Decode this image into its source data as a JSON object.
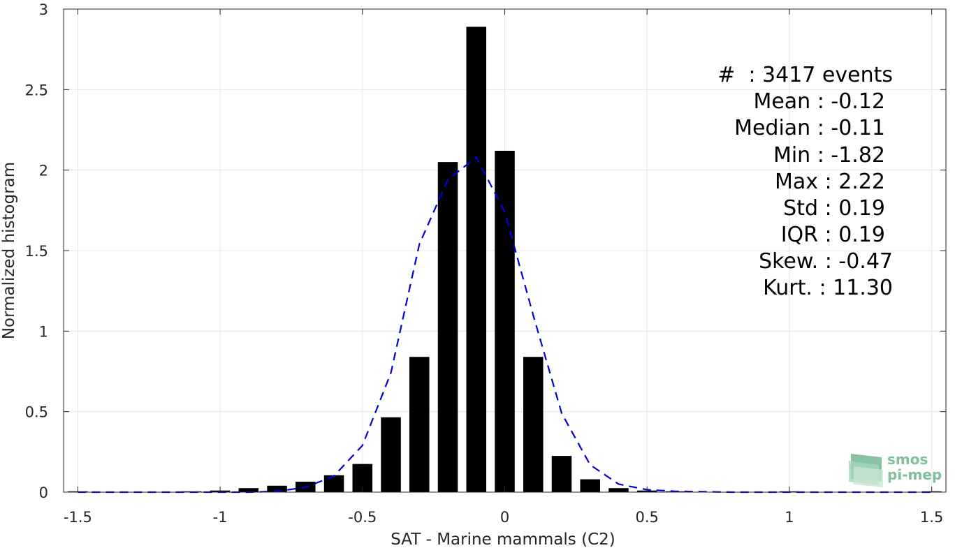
{
  "chart_data": {
    "type": "bar",
    "xlabel": "SAT - Marine mammals (C2)",
    "ylabel": "Normalized histogram",
    "xlim": [
      -1.55,
      1.55
    ],
    "ylim": [
      0,
      3
    ],
    "xticks": [
      -1.5,
      -1,
      -0.5,
      0,
      0.5,
      1,
      1.5
    ],
    "xtick_labels": [
      "-1.5",
      "-1",
      "-0.5",
      "0",
      "0.5",
      "1",
      "1.5"
    ],
    "yticks": [
      0,
      0.5,
      1,
      1.5,
      2,
      2.5,
      3
    ],
    "ytick_labels": [
      "0",
      "0.5",
      "1",
      "1.5",
      "2",
      "2.5",
      "3"
    ],
    "grid": true,
    "bar_width": 0.07,
    "bars": {
      "x": [
        -1.5,
        -1.1,
        -1.0,
        -0.9,
        -0.8,
        -0.7,
        -0.6,
        -0.5,
        -0.4,
        -0.3,
        -0.2,
        -0.1,
        0.0,
        0.1,
        0.2,
        0.3,
        0.4,
        0.5,
        0.6,
        1.0,
        1.5
      ],
      "values": [
        0.005,
        0.005,
        0.01,
        0.025,
        0.04,
        0.065,
        0.105,
        0.175,
        0.465,
        0.84,
        2.05,
        2.89,
        2.12,
        0.84,
        0.225,
        0.08,
        0.025,
        0.01,
        0.005,
        0.005,
        0.005
      ],
      "color": "#000000"
    },
    "fit_curve": {
      "style": "dashed",
      "color": "#0000dd",
      "x": [
        -1.5,
        -1.3,
        -1.1,
        -1.0,
        -0.9,
        -0.8,
        -0.7,
        -0.6,
        -0.5,
        -0.4,
        -0.3,
        -0.2,
        -0.1,
        0.0,
        0.1,
        0.2,
        0.3,
        0.4,
        0.5,
        0.6,
        0.8,
        1.0,
        1.2,
        1.5
      ],
      "y": [
        0.0,
        0.0,
        0.0,
        0.0,
        0.0,
        0.005,
        0.03,
        0.1,
        0.29,
        0.74,
        1.54,
        1.94,
        2.08,
        1.74,
        1.1,
        0.49,
        0.17,
        0.05,
        0.015,
        0.005,
        0.0,
        0.0,
        0.0,
        0.0
      ]
    },
    "annotations": [
      "#  : 3417 events",
      "Mean : -0.12",
      "Median : -0.11",
      "Min : -1.82",
      "Max : 2.22",
      "Std : 0.19",
      "IQR : 0.19",
      "Skew. : -0.47",
      "Kurt. : 11.30"
    ]
  },
  "logo": {
    "line1": "smos",
    "line2": "pi-mep",
    "color": "#7fbf9b"
  }
}
